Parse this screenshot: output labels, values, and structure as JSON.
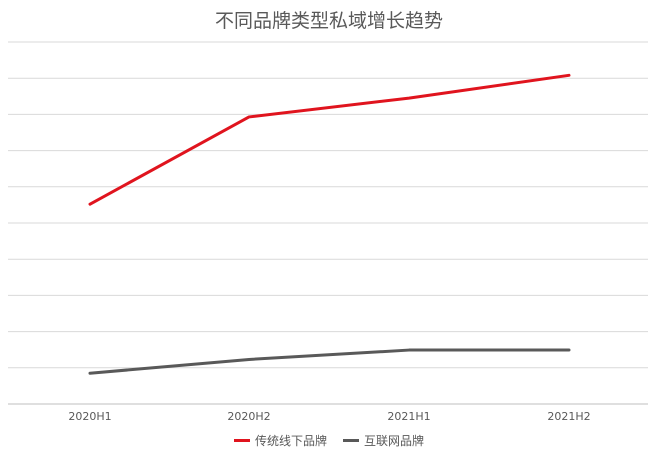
{
  "chart_data": {
    "type": "line",
    "title": "不同品牌类型私域增长趋势",
    "categories": [
      "2020H1",
      "2020H2",
      "2021H1",
      "2021H2"
    ],
    "ylim": [
      0,
      10
    ],
    "grid": true,
    "legend_position": "bottom",
    "series": [
      {
        "name": "传统线下品牌",
        "color": "#e0141e",
        "values": [
          5.52,
          7.93,
          8.45,
          9.08
        ]
      },
      {
        "name": "互联网品牌",
        "color": "#595959",
        "values": [
          0.85,
          1.23,
          1.49,
          1.49
        ]
      }
    ]
  }
}
